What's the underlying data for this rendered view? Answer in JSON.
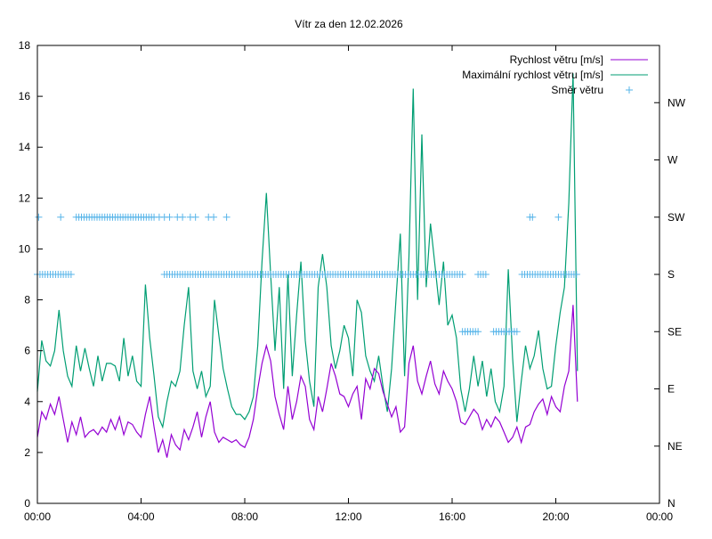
{
  "chart_data": {
    "type": "line",
    "title": "Vítr za den 12.02.2026",
    "xlabel": "",
    "ylabel": "",
    "xlim_hours": [
      0,
      24
    ],
    "ylim": [
      0,
      18
    ],
    "y2lim_degrees": [
      0,
      360
    ],
    "x_tick_labels": [
      "00:00",
      "04:00",
      "08:00",
      "12:00",
      "16:00",
      "20:00",
      "00:00"
    ],
    "y_tick_labels": [
      "0",
      "2",
      "4",
      "6",
      "8",
      "10",
      "12",
      "14",
      "16",
      "18"
    ],
    "y2_tick_labels": [
      "N",
      "NE",
      "E",
      "SE",
      "S",
      "SW",
      "W",
      "NW"
    ],
    "grid": false,
    "legend_position": "top-right",
    "sample_interval_minutes": 10,
    "series": [
      {
        "name": "Rychlost větru [m/s]",
        "color": "#9400d3",
        "values": [
          2.6,
          3.6,
          3.3,
          3.9,
          3.5,
          4.2,
          3.3,
          2.4,
          3.2,
          2.7,
          3.4,
          2.6,
          2.8,
          2.9,
          2.7,
          3.0,
          2.8,
          3.3,
          2.9,
          3.4,
          2.7,
          3.2,
          3.1,
          2.8,
          2.6,
          3.5,
          4.2,
          3.0,
          2.0,
          2.5,
          1.8,
          2.7,
          2.3,
          2.1,
          2.9,
          2.5,
          3.0,
          3.6,
          2.6,
          3.4,
          4.0,
          2.8,
          2.4,
          2.6,
          2.5,
          2.4,
          2.5,
          2.3,
          2.2,
          2.6,
          3.3,
          4.5,
          5.5,
          6.2,
          5.6,
          4.2,
          3.5,
          2.9,
          4.6,
          3.3,
          4.0,
          5.0,
          4.6,
          3.3,
          2.9,
          4.2,
          3.6,
          4.5,
          5.5,
          5.0,
          4.3,
          4.2,
          3.8,
          4.3,
          4.6,
          3.3,
          4.9,
          4.5,
          5.3,
          5.1,
          4.4,
          3.9,
          3.4,
          3.8,
          2.8,
          3.0,
          5.5,
          6.2,
          4.8,
          4.3,
          5.0,
          5.6,
          4.7,
          4.3,
          5.2,
          4.8,
          4.5,
          4.0,
          3.2,
          3.1,
          3.4,
          3.7,
          3.5,
          2.9,
          3.3,
          3.0,
          3.4,
          3.2,
          2.8,
          2.4,
          2.6,
          3.0,
          2.4,
          3.0,
          3.1,
          3.6,
          3.9,
          4.1,
          3.5,
          4.2,
          3.8,
          3.6,
          4.6,
          5.2,
          7.8,
          4.0
        ]
      },
      {
        "name": "Maximální rychlost větru [m/s]",
        "color": "#009e73",
        "values": [
          4.4,
          6.4,
          5.6,
          5.4,
          6.0,
          7.6,
          6.0,
          5.0,
          4.6,
          6.2,
          5.2,
          6.1,
          5.3,
          4.6,
          5.8,
          4.8,
          5.5,
          5.5,
          5.4,
          4.8,
          6.5,
          5.0,
          5.8,
          4.8,
          4.6,
          8.6,
          6.5,
          5.0,
          3.4,
          3.0,
          4.0,
          4.8,
          4.6,
          5.2,
          7.0,
          8.5,
          5.2,
          4.5,
          5.2,
          4.2,
          4.6,
          8.0,
          6.6,
          5.3,
          4.5,
          3.8,
          3.5,
          3.5,
          3.3,
          3.6,
          4.2,
          6.2,
          9.5,
          12.2,
          9.0,
          6.0,
          8.5,
          4.5,
          9.0,
          5.0,
          7.4,
          9.5,
          6.4,
          4.8,
          3.8,
          8.5,
          9.8,
          8.5,
          6.2,
          5.3,
          6.0,
          7.0,
          6.5,
          5.0,
          8.0,
          7.5,
          5.8,
          5.2,
          4.8,
          5.8,
          4.6,
          3.6,
          5.3,
          8.0,
          10.6,
          5.0,
          9.7,
          16.3,
          8.0,
          14.5,
          8.5,
          11.0,
          9.4,
          7.8,
          9.5,
          7.0,
          7.4,
          6.5,
          4.5,
          3.6,
          4.5,
          5.8,
          4.6,
          5.6,
          4.2,
          5.3,
          4.0,
          3.6,
          4.6,
          9.2,
          5.7,
          3.2,
          4.8,
          6.2,
          5.3,
          5.8,
          6.8,
          5.3,
          4.5,
          4.6,
          6.2,
          7.5,
          8.5,
          11.8,
          16.9,
          5.2
        ]
      },
      {
        "name": "Směr větru",
        "color": "#56b4e9",
        "axis": "y2",
        "style": "points",
        "groups": [
          {
            "degrees": 225,
            "hours": [
              0.05,
              0.9,
              1.5,
              1.6,
              1.7,
              1.8,
              1.9,
              2.0,
              2.1,
              2.2,
              2.3,
              2.4,
              2.5,
              2.6,
              2.7,
              2.8,
              2.9,
              3.0,
              3.1,
              3.2,
              3.3,
              3.4,
              3.5,
              3.6,
              3.7,
              3.8,
              3.9,
              4.0,
              4.1,
              4.2,
              4.3,
              4.4,
              4.5,
              4.7,
              4.9,
              5.1,
              5.4,
              5.6,
              5.9,
              6.1,
              6.6,
              6.8,
              7.3,
              19.0,
              19.1,
              20.1
            ]
          },
          {
            "degrees": 180,
            "ranges": [
              [
                0.0,
                1.3
              ],
              [
                4.9,
                16.4
              ],
              [
                17.0,
                17.3
              ],
              [
                18.7,
                20.8
              ]
            ],
            "step_hours": 0.1
          },
          {
            "degrees": 135,
            "ranges": [
              [
                16.4,
                17.0
              ],
              [
                17.6,
                18.5
              ]
            ],
            "step_hours": 0.1
          }
        ]
      }
    ]
  }
}
